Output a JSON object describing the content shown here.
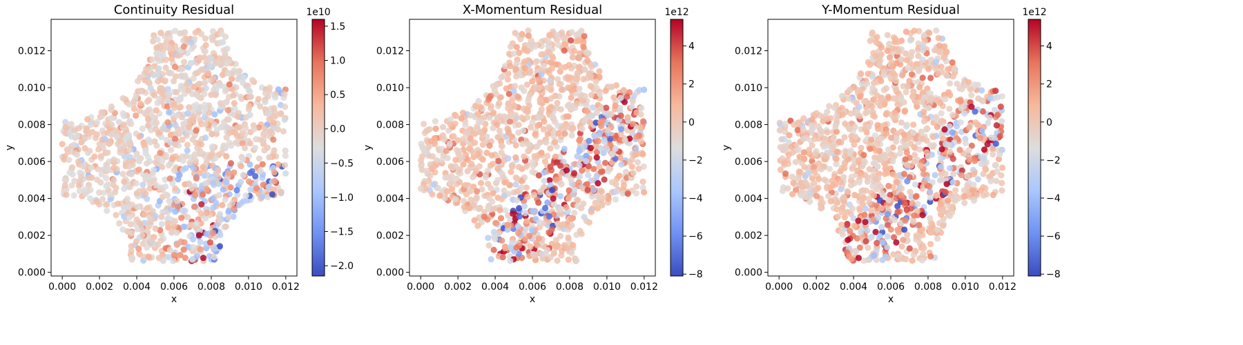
{
  "figure": {
    "colormap": "coolwarm",
    "colormap_stops": [
      "#3b4cc0",
      "#6f92f3",
      "#aac7fd",
      "#dddddd",
      "#f7b89c",
      "#e7745b",
      "#b40426"
    ],
    "background": "#ffffff"
  },
  "chart_data": [
    {
      "type": "scatter",
      "title": "Continuity Residual",
      "xlabel": "x",
      "ylabel": "y",
      "xlim": [
        -0.0006,
        0.0126
      ],
      "ylim": [
        -0.0002,
        0.0137
      ],
      "xticks": [
        "0.000",
        "0.002",
        "0.004",
        "0.006",
        "0.008",
        "0.010",
        "0.012"
      ],
      "yticks": [
        "0.000",
        "0.002",
        "0.004",
        "0.006",
        "0.008",
        "0.010",
        "0.012"
      ],
      "domain_shape": "square region x 0 to 0.012, y 0.0006 to 0.0131 with four circular notches at the corners",
      "colorbar": {
        "range": [
          -2.15,
          1.6
        ],
        "ticks": [
          "1.5",
          "1.0",
          "0.5",
          "0.0",
          "−0.5",
          "−1.0",
          "−1.5",
          "−2.0"
        ],
        "offset_text": "1e10"
      },
      "field_pattern": "mostly near zero; blue clusters along lower-right notch and bottom edge, red specks in lower-left"
    },
    {
      "type": "scatter",
      "title": "X-Momentum Residual",
      "xlabel": "x",
      "ylabel": "y",
      "xlim": [
        -0.0006,
        0.0126
      ],
      "ylim": [
        -0.0002,
        0.0137
      ],
      "xticks": [
        "0.000",
        "0.002",
        "0.004",
        "0.006",
        "0.008",
        "0.010",
        "0.012"
      ],
      "yticks": [
        "0.000",
        "0.002",
        "0.004",
        "0.006",
        "0.008",
        "0.010",
        "0.012"
      ],
      "domain_shape": "same square region with four circular notches",
      "colorbar": {
        "range": [
          -8.1,
          5.4
        ],
        "ticks": [
          "4",
          "2",
          "0",
          "−2",
          "−4",
          "−6",
          "−8"
        ],
        "offset_text": "1e12"
      },
      "field_pattern": "mostly light orange; dark red points along a diagonal band, blue points near left and lower edges"
    },
    {
      "type": "scatter",
      "title": "Y-Momentum Residual",
      "xlabel": "x",
      "ylabel": "y",
      "xlim": [
        -0.0006,
        0.0126
      ],
      "ylim": [
        -0.0002,
        0.0137
      ],
      "xticks": [
        "0.000",
        "0.002",
        "0.004",
        "0.006",
        "0.008",
        "0.010",
        "0.012"
      ],
      "yticks": [
        "0.000",
        "0.002",
        "0.004",
        "0.006",
        "0.008",
        "0.010",
        "0.012"
      ],
      "domain_shape": "same square region with four circular notches",
      "colorbar": {
        "range": [
          -8.1,
          5.4
        ],
        "ticks": [
          "4",
          "2",
          "0",
          "−2",
          "−4",
          "−6",
          "−8"
        ],
        "offset_text": "1e12"
      },
      "field_pattern": "mostly light orange; dark red points along a diagonal band, blue points near left and lower edges"
    }
  ]
}
